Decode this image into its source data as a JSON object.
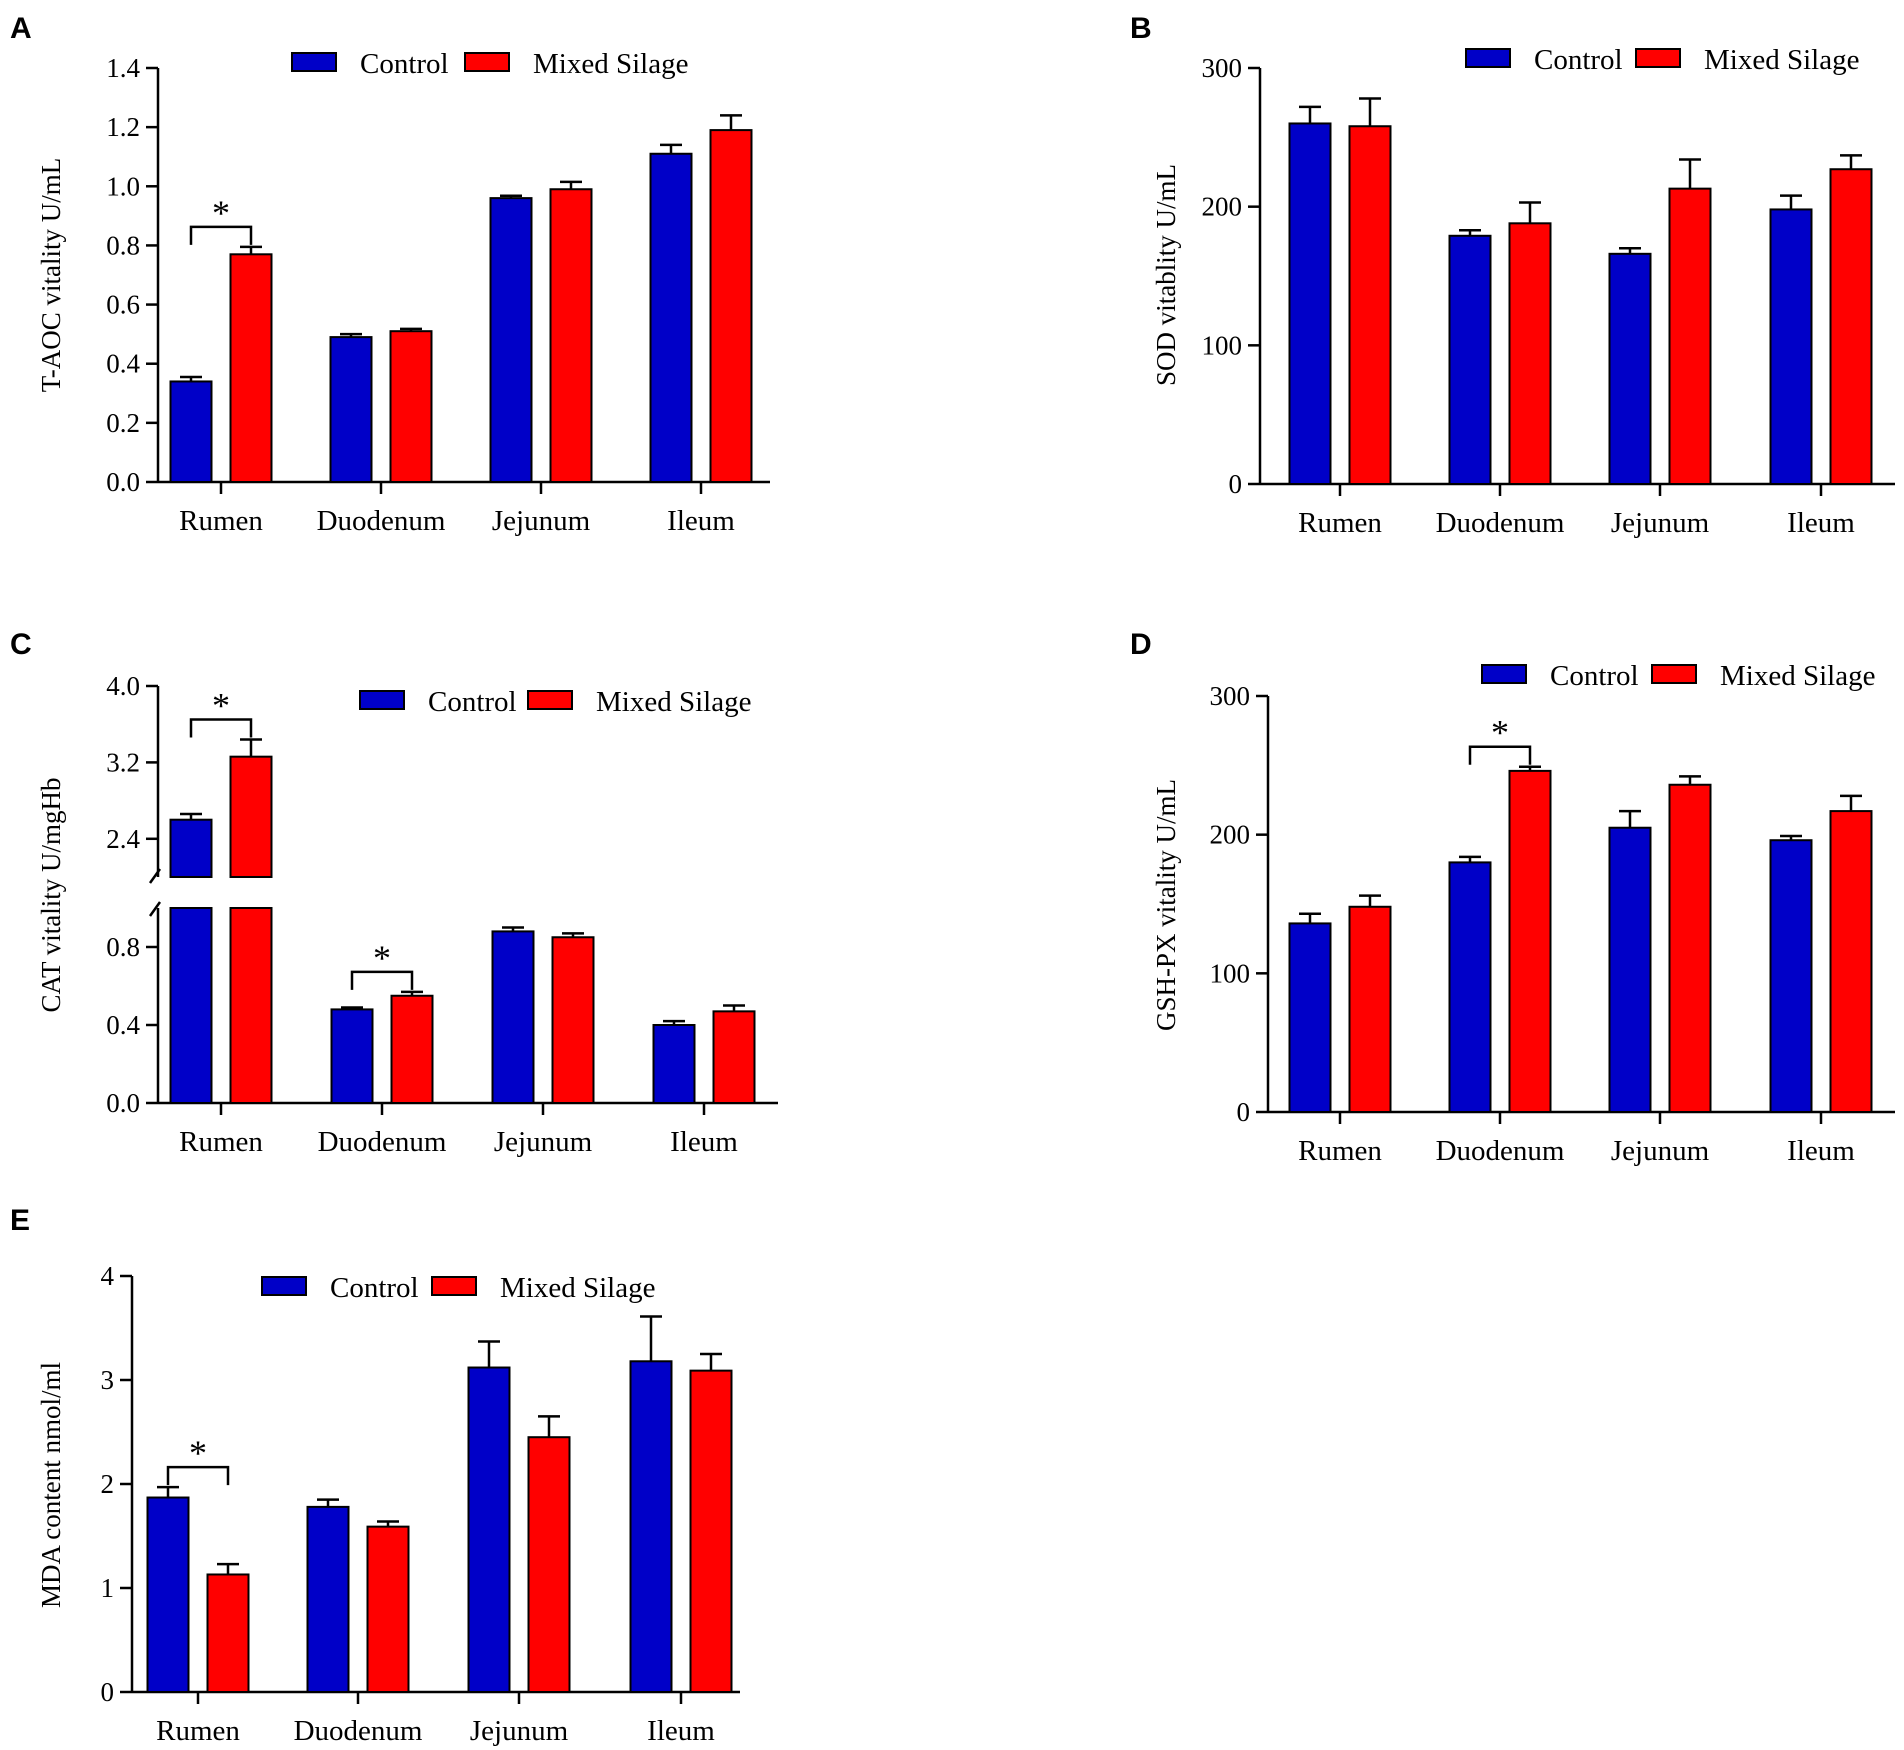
{
  "chart_data": [
    {
      "panel": "A",
      "type": "bar",
      "categories": [
        "Rumen",
        "Duodenum",
        "Jejunum",
        "Ileum"
      ],
      "series": [
        {
          "name": "Control",
          "color": "#0000c8",
          "values": [
            0.34,
            0.49,
            0.96,
            1.11
          ],
          "errors": [
            0.015,
            0.01,
            0.008,
            0.03
          ]
        },
        {
          "name": "Mixed Silage",
          "color": "#ff0000",
          "values": [
            0.77,
            0.51,
            0.99,
            1.19
          ],
          "errors": [
            0.025,
            0.008,
            0.025,
            0.05
          ]
        }
      ],
      "ylabel": "T-AOC vitality  U/mL",
      "ylim": [
        0,
        1.4
      ],
      "yticks": [
        0.0,
        0.2,
        0.4,
        0.6,
        0.8,
        1.0,
        1.2,
        1.4
      ],
      "ytick_labels": [
        "0.0",
        "0.2",
        "0.4",
        "0.6",
        "0.8",
        "1.0",
        "1.2",
        "1.4"
      ],
      "significance": [
        {
          "category": "Rumen",
          "label": "*"
        }
      ]
    },
    {
      "panel": "B",
      "type": "bar",
      "categories": [
        "Rumen",
        "Duodenum",
        "Jejunum",
        "Ileum"
      ],
      "series": [
        {
          "name": "Control",
          "color": "#0000c8",
          "values": [
            260,
            179,
            166,
            198
          ],
          "errors": [
            12,
            4,
            4,
            10
          ]
        },
        {
          "name": "Mixed Silage",
          "color": "#ff0000",
          "values": [
            258,
            188,
            213,
            227
          ],
          "errors": [
            20,
            15,
            21,
            10
          ]
        }
      ],
      "ylabel": "SOD vitablity U/mL",
      "ylim": [
        0,
        300
      ],
      "yticks": [
        0,
        100,
        200,
        300
      ],
      "ytick_labels": [
        "0",
        "100",
        "200",
        "300"
      ],
      "significance": []
    },
    {
      "panel": "C",
      "type": "bar",
      "categories": [
        "Rumen",
        "Duodenum",
        "Jejunum",
        "Ileum"
      ],
      "series": [
        {
          "name": "Control",
          "color": "#0000c8",
          "values": [
            2.6,
            0.48,
            0.88,
            0.4
          ],
          "errors": [
            0.06,
            0.01,
            0.02,
            0.02
          ]
        },
        {
          "name": "Mixed Silage",
          "color": "#ff0000",
          "values": [
            3.26,
            0.55,
            0.85,
            0.47
          ],
          "errors": [
            0.18,
            0.02,
            0.02,
            0.03
          ]
        }
      ],
      "ylabel": "CAT vitality  U/mgHb",
      "ylim": [
        0,
        4.0
      ],
      "axis_break": [
        1.0,
        2.0
      ],
      "yticks": [
        0.0,
        0.4,
        0.8,
        2.4,
        3.2,
        4.0
      ],
      "ytick_labels": [
        "0.0",
        "0.4",
        "0.8",
        "2.4",
        "3.2",
        "4.0"
      ],
      "significance": [
        {
          "category": "Rumen",
          "label": "*"
        },
        {
          "category": "Duodenum",
          "label": "*"
        }
      ]
    },
    {
      "panel": "D",
      "type": "bar",
      "categories": [
        "Rumen",
        "Duodenum",
        "Jejunum",
        "Ileum"
      ],
      "series": [
        {
          "name": "Control",
          "color": "#0000c8",
          "values": [
            136,
            180,
            205,
            196
          ],
          "errors": [
            7,
            4,
            12,
            3
          ]
        },
        {
          "name": "Mixed Silage",
          "color": "#ff0000",
          "values": [
            148,
            246,
            236,
            217
          ],
          "errors": [
            8,
            3,
            6,
            11
          ]
        }
      ],
      "ylabel": "GSH-PX vitality  U/mL",
      "ylim": [
        0,
        300
      ],
      "yticks": [
        0,
        100,
        200,
        300
      ],
      "ytick_labels": [
        "0",
        "100",
        "200",
        "300"
      ],
      "significance": [
        {
          "category": "Duodenum",
          "label": "*"
        }
      ]
    },
    {
      "panel": "E",
      "type": "bar",
      "categories": [
        "Rumen",
        "Duodenum",
        "Jejunum",
        "Ileum"
      ],
      "series": [
        {
          "name": "Control",
          "color": "#0000c8",
          "values": [
            1.87,
            1.78,
            3.12,
            3.18
          ],
          "errors": [
            0.1,
            0.07,
            0.25,
            0.43
          ]
        },
        {
          "name": "Mixed Silage",
          "color": "#ff0000",
          "values": [
            1.13,
            1.59,
            2.45,
            3.09
          ],
          "errors": [
            0.1,
            0.05,
            0.2,
            0.16
          ]
        }
      ],
      "ylabel": "MDA content nmol/ml",
      "ylim": [
        0,
        4
      ],
      "yticks": [
        0,
        1,
        2,
        3,
        4
      ],
      "ytick_labels": [
        "0",
        "1",
        "2",
        "3",
        "4"
      ],
      "significance": [
        {
          "category": "Rumen",
          "label": "*"
        }
      ]
    }
  ]
}
